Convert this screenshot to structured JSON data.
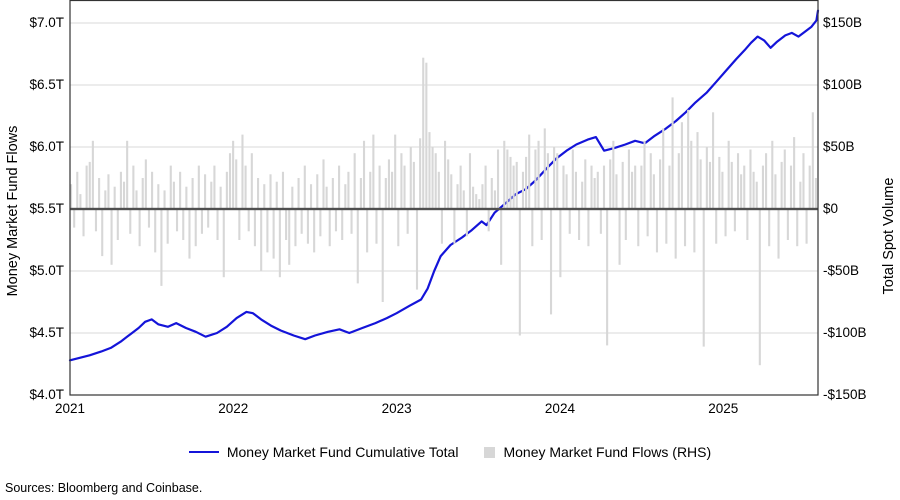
{
  "chart_data": {
    "type": "line+bar combo",
    "title": "",
    "x_axis": {
      "ticks": [
        "2021",
        "2022",
        "2023",
        "2024",
        "2025"
      ],
      "tick_values": [
        2021,
        2022,
        2023,
        2024,
        2025
      ],
      "range_years": [
        2021.0,
        2025.58
      ]
    },
    "y_left": {
      "label": "Money Market Fund Flows",
      "ticks": [
        "$7.0T",
        "$6.5T",
        "$6.0T",
        "$5.5T",
        "$5.0T",
        "$4.5T",
        "$4.0T"
      ],
      "tick_values": [
        7.0,
        6.5,
        6.0,
        5.5,
        5.0,
        4.5,
        4.0
      ],
      "range_trillions": [
        4.0,
        7.0
      ],
      "grid": true
    },
    "y_right": {
      "label": "Total Spot Volume",
      "ticks": [
        "$150B",
        "$100B",
        "$50B",
        "$0",
        "-$50B",
        "-$100B",
        "-$150B"
      ],
      "tick_values": [
        150,
        100,
        50,
        0,
        -50,
        -100,
        -150
      ],
      "range_billions": [
        -150,
        150
      ]
    },
    "colors": {
      "line": "#1414d9",
      "bars": "#d7d7d7",
      "zero_line": "#4f4f4f",
      "gridline": "#dadada",
      "frame": "#333333"
    },
    "series": [
      {
        "name": "Money Market Fund Cumulative Total",
        "type": "line",
        "axis": "left",
        "unit": "$T",
        "points": [
          [
            2021.0,
            4.28
          ],
          [
            2021.06,
            4.3
          ],
          [
            2021.12,
            4.32
          ],
          [
            2021.19,
            4.35
          ],
          [
            2021.25,
            4.38
          ],
          [
            2021.31,
            4.43
          ],
          [
            2021.37,
            4.49
          ],
          [
            2021.42,
            4.54
          ],
          [
            2021.46,
            4.59
          ],
          [
            2021.5,
            4.61
          ],
          [
            2021.54,
            4.57
          ],
          [
            2021.6,
            4.55
          ],
          [
            2021.65,
            4.58
          ],
          [
            2021.71,
            4.54
          ],
          [
            2021.77,
            4.51
          ],
          [
            2021.83,
            4.47
          ],
          [
            2021.9,
            4.5
          ],
          [
            2021.96,
            4.55
          ],
          [
            2022.02,
            4.62
          ],
          [
            2022.08,
            4.67
          ],
          [
            2022.12,
            4.66
          ],
          [
            2022.17,
            4.61
          ],
          [
            2022.23,
            4.56
          ],
          [
            2022.29,
            4.52
          ],
          [
            2022.37,
            4.48
          ],
          [
            2022.44,
            4.45
          ],
          [
            2022.5,
            4.48
          ],
          [
            2022.58,
            4.51
          ],
          [
            2022.65,
            4.53
          ],
          [
            2022.71,
            4.5
          ],
          [
            2022.79,
            4.54
          ],
          [
            2022.87,
            4.58
          ],
          [
            2022.94,
            4.62
          ],
          [
            2023.0,
            4.66
          ],
          [
            2023.08,
            4.72
          ],
          [
            2023.15,
            4.77
          ],
          [
            2023.19,
            4.86
          ],
          [
            2023.23,
            5.0
          ],
          [
            2023.27,
            5.12
          ],
          [
            2023.33,
            5.21
          ],
          [
            2023.4,
            5.27
          ],
          [
            2023.46,
            5.33
          ],
          [
            2023.52,
            5.4
          ],
          [
            2023.55,
            5.37
          ],
          [
            2023.6,
            5.47
          ],
          [
            2023.67,
            5.55
          ],
          [
            2023.73,
            5.62
          ],
          [
            2023.79,
            5.66
          ],
          [
            2023.85,
            5.73
          ],
          [
            2023.92,
            5.83
          ],
          [
            2023.98,
            5.91
          ],
          [
            2024.04,
            5.97
          ],
          [
            2024.1,
            6.02
          ],
          [
            2024.17,
            6.06
          ],
          [
            2024.22,
            6.08
          ],
          [
            2024.27,
            5.97
          ],
          [
            2024.33,
            5.99
          ],
          [
            2024.4,
            6.02
          ],
          [
            2024.46,
            6.05
          ],
          [
            2024.52,
            6.03
          ],
          [
            2024.58,
            6.09
          ],
          [
            2024.65,
            6.15
          ],
          [
            2024.71,
            6.21
          ],
          [
            2024.77,
            6.28
          ],
          [
            2024.83,
            6.36
          ],
          [
            2024.9,
            6.44
          ],
          [
            2024.96,
            6.53
          ],
          [
            2025.02,
            6.62
          ],
          [
            2025.08,
            6.71
          ],
          [
            2025.13,
            6.78
          ],
          [
            2025.17,
            6.84
          ],
          [
            2025.21,
            6.89
          ],
          [
            2025.25,
            6.86
          ],
          [
            2025.29,
            6.8
          ],
          [
            2025.33,
            6.85
          ],
          [
            2025.38,
            6.9
          ],
          [
            2025.42,
            6.92
          ],
          [
            2025.46,
            6.89
          ],
          [
            2025.5,
            6.93
          ],
          [
            2025.54,
            6.97
          ],
          [
            2025.57,
            7.02
          ],
          [
            2025.58,
            7.1
          ]
        ]
      },
      {
        "name": "Money Market Fund Flows (RHS)",
        "type": "bar",
        "axis": "right",
        "unit": "$B",
        "frequency": "weekly",
        "start": "2021-01",
        "values": [
          20,
          -15,
          30,
          12,
          -22,
          35,
          38,
          55,
          -18,
          25,
          -38,
          15,
          28,
          -45,
          18,
          -25,
          30,
          22,
          55,
          -20,
          35,
          15,
          -30,
          25,
          40,
          -15,
          30,
          -35,
          20,
          -62,
          15,
          -28,
          35,
          22,
          -18,
          30,
          -25,
          18,
          -40,
          25,
          -30,
          35,
          -20,
          28,
          -15,
          22,
          35,
          -25,
          18,
          -55,
          30,
          45,
          55,
          40,
          -25,
          60,
          35,
          -18,
          45,
          -30,
          25,
          -50,
          20,
          -35,
          28,
          -40,
          22,
          -55,
          30,
          -25,
          -45,
          18,
          -30,
          25,
          -20,
          35,
          -28,
          20,
          -35,
          28,
          -22,
          40,
          18,
          -30,
          25,
          -18,
          35,
          -25,
          20,
          30,
          -20,
          45,
          -60,
          25,
          55,
          -35,
          30,
          60,
          -28,
          35,
          -75,
          25,
          40,
          30,
          60,
          -30,
          45,
          35,
          -20,
          50,
          38,
          -65,
          57,
          122,
          118,
          62,
          50,
          45,
          30,
          -28,
          55,
          40,
          28,
          -28,
          20,
          35,
          15,
          -22,
          45,
          18,
          12,
          8,
          20,
          35,
          -18,
          25,
          15,
          48,
          -45,
          55,
          48,
          42,
          35,
          38,
          -102,
          30,
          42,
          60,
          -30,
          48,
          55,
          -25,
          65,
          45,
          -85,
          50,
          45,
          -55,
          35,
          28,
          -20,
          48,
          30,
          -25,
          22,
          40,
          -30,
          35,
          25,
          30,
          -20,
          35,
          -110,
          40,
          55,
          28,
          -45,
          38,
          -25,
          48,
          30,
          35,
          -30,
          35,
          55,
          -22,
          45,
          28,
          -35,
          40,
          65,
          -28,
          35,
          90,
          -40,
          45,
          70,
          -30,
          80,
          55,
          -35,
          62,
          40,
          -111,
          50,
          38,
          78,
          -28,
          42,
          30,
          -22,
          55,
          38,
          -18,
          45,
          28,
          35,
          -25,
          48,
          30,
          22,
          -126,
          35,
          45,
          -30,
          55,
          28,
          -40,
          38,
          48,
          -25,
          35,
          58,
          -30,
          22,
          45,
          -28,
          35,
          78,
          25
        ]
      }
    ],
    "legend": {
      "line_label": "Money Market Fund Cumulative Total",
      "bar_label": "Money Market Fund Flows (RHS)"
    },
    "source_note": "Sources: Bloomberg and Coinbase."
  }
}
